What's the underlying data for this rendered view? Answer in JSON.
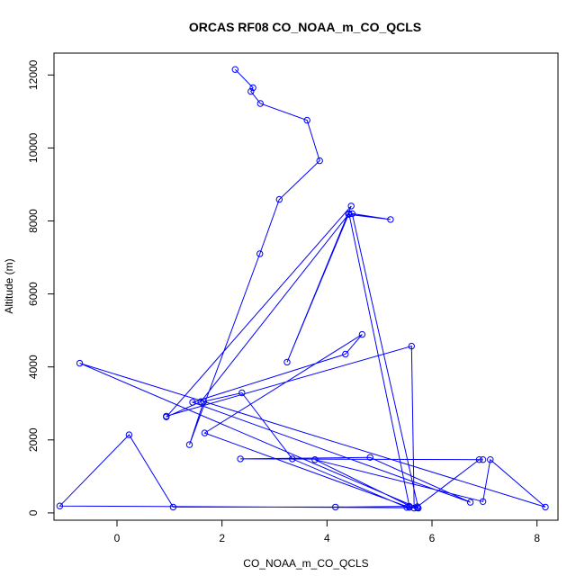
{
  "chart_data": {
    "type": "line",
    "title": "ORCAS RF08 CO_NOAA_m_CO_QCLS",
    "xlabel": "CO_NOAA_m_CO_QCLS",
    "ylabel": "Altitude (m)",
    "xlim": [
      -1.2,
      8.4
    ],
    "ylim": [
      -200,
      12600
    ],
    "x_ticks": [
      0,
      2,
      4,
      6,
      8
    ],
    "y_ticks": [
      0,
      2000,
      4000,
      6000,
      8000,
      10000,
      12000
    ],
    "grid": false,
    "color": "#0000ff",
    "series": [
      {
        "x": [
          2.25,
          2.59,
          2.55,
          2.73,
          3.62,
          3.86,
          3.09,
          2.72,
          1.38,
          1.65,
          2.38,
          3.34,
          5.52,
          5.72,
          6.9,
          6.97,
          2.35,
          4.82,
          6.73,
          1.44,
          4.35,
          4.67,
          1.67,
          5.57,
          5.72,
          -1.09,
          0.23,
          1.07,
          4.16,
          5.57,
          4.42,
          1.6,
          0.94,
          4.46,
          3.24,
          4.41,
          5.21,
          4.48,
          5.74,
          -0.71,
          8.16,
          7.11,
          6.97,
          3.77,
          5.66,
          5.61,
          0.94
        ],
        "y": [
          12150,
          11650,
          11550,
          11220,
          10760,
          9650,
          8590,
          7100,
          1870,
          3050,
          3290,
          1480,
          150,
          170,
          1460,
          1460,
          1480,
          1520,
          290,
          3030,
          4350,
          4890,
          2190,
          150,
          140,
          190,
          2140,
          160,
          160,
          180,
          8200,
          3050,
          2630,
          8410,
          4130,
          8180,
          8040,
          8200,
          130,
          4100,
          160,
          1460,
          310,
          1460,
          130,
          4570,
          2650
        ]
      }
    ]
  }
}
